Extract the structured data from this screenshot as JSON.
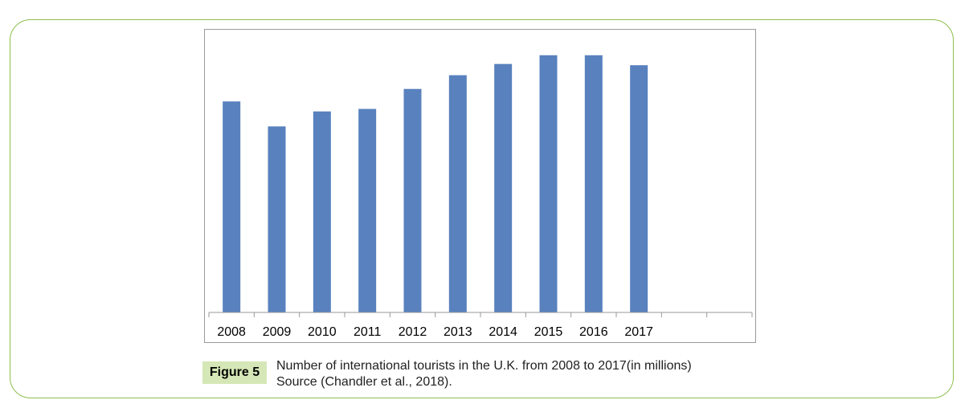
{
  "figure": {
    "label": "Figure 5",
    "caption_line1": "Number of international tourists in the U.K. from 2008 to 2017(in millions)",
    "caption_line2": "Source (Chandler et al., 2018)."
  },
  "colors": {
    "bar": "#5881be",
    "frame": "#8cc04b",
    "figure_label_bg": "#d5e7b6",
    "axis": "#9a9a9a"
  },
  "chart_data": {
    "type": "bar",
    "categories": [
      "2008",
      "2009",
      "2010",
      "2011",
      "2012",
      "2013",
      "2014",
      "2015",
      "2016",
      "2017",
      "",
      ""
    ],
    "values": [
      31.9,
      29.9,
      31.1,
      31.3,
      32.9,
      34.0,
      34.9,
      35.6,
      35.6,
      34.8,
      null,
      null
    ],
    "title": "",
    "xlabel": "",
    "ylabel": "",
    "ylim": [
      15,
      37
    ],
    "grid": false,
    "legend": "none"
  }
}
